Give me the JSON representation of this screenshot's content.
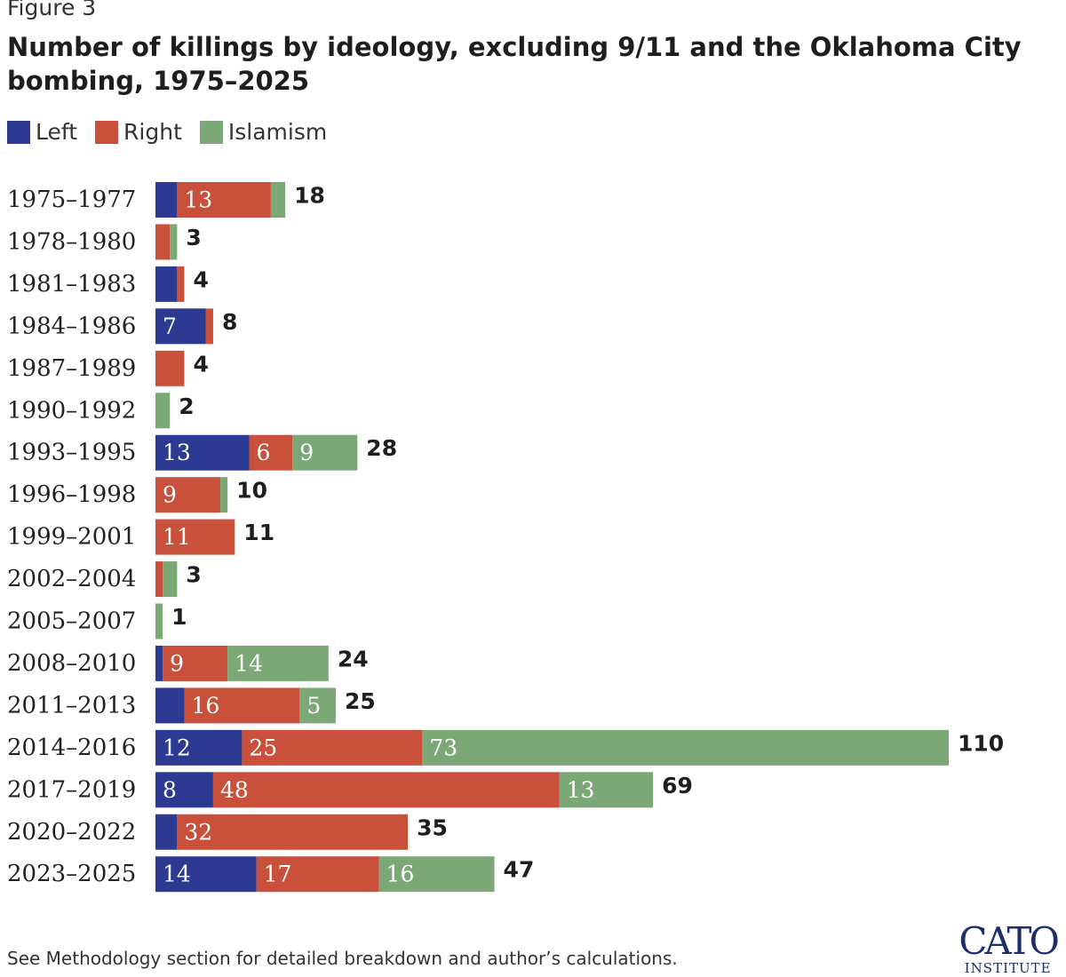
{
  "figure_label": "Figure 3",
  "logo": {
    "main": "CATO",
    "sub": "INSTITUTE"
  },
  "footnote": "See Methodology section for detailed breakdown and author’s calculations.",
  "chart_data": {
    "type": "bar",
    "orientation": "horizontal",
    "stacked": true,
    "title": "Number of killings by ideology, excluding 9/11 and the Oklahoma City bombing, 1975–2025",
    "xlabel": "",
    "ylabel": "",
    "legend_position": "top-left",
    "grid": false,
    "xlim": [
      0,
      110
    ],
    "categories": [
      "1975–1977",
      "1978–1980",
      "1981–1983",
      "1984–1986",
      "1987–1989",
      "1990–1992",
      "1993–1995",
      "1996–1998",
      "1999–2001",
      "2002–2004",
      "2005–2007",
      "2008–2010",
      "2011–2013",
      "2014–2016",
      "2017–2019",
      "2020–2022",
      "2023–2025"
    ],
    "series": [
      {
        "name": "Left",
        "color": "#2c3a92",
        "values": [
          3,
          0,
          3,
          7,
          0,
          0,
          13,
          0,
          0,
          0,
          0,
          1,
          4,
          12,
          8,
          3,
          14
        ]
      },
      {
        "name": "Right",
        "color": "#c9503a",
        "values": [
          13,
          2,
          1,
          1,
          4,
          0,
          6,
          9,
          11,
          1,
          0,
          9,
          16,
          25,
          48,
          32,
          17
        ]
      },
      {
        "name": "Islamism",
        "color": "#7ba876",
        "values": [
          2,
          1,
          0,
          0,
          0,
          2,
          9,
          1,
          0,
          2,
          1,
          14,
          5,
          73,
          13,
          0,
          16
        ]
      }
    ],
    "segment_labels": [
      [
        "",
        "13",
        ""
      ],
      [
        "",
        "",
        ""
      ],
      [
        "",
        "",
        ""
      ],
      [
        "7",
        "",
        ""
      ],
      [
        "",
        "",
        ""
      ],
      [
        "",
        "",
        ""
      ],
      [
        "13",
        "6",
        "9"
      ],
      [
        "",
        "9",
        ""
      ],
      [
        "",
        "11",
        ""
      ],
      [
        "",
        "",
        ""
      ],
      [
        "",
        "",
        ""
      ],
      [
        "",
        "9",
        "14"
      ],
      [
        "",
        "16",
        "5"
      ],
      [
        "12",
        "25",
        "73"
      ],
      [
        "8",
        "48",
        "13"
      ],
      [
        "",
        "32",
        ""
      ],
      [
        "14",
        "17",
        "16"
      ]
    ],
    "totals": [
      "18",
      "3",
      "4",
      "8",
      "4",
      "2",
      "28",
      "10",
      "11",
      "3",
      "1",
      "24",
      "25",
      "110",
      "69",
      "35",
      "47"
    ]
  }
}
